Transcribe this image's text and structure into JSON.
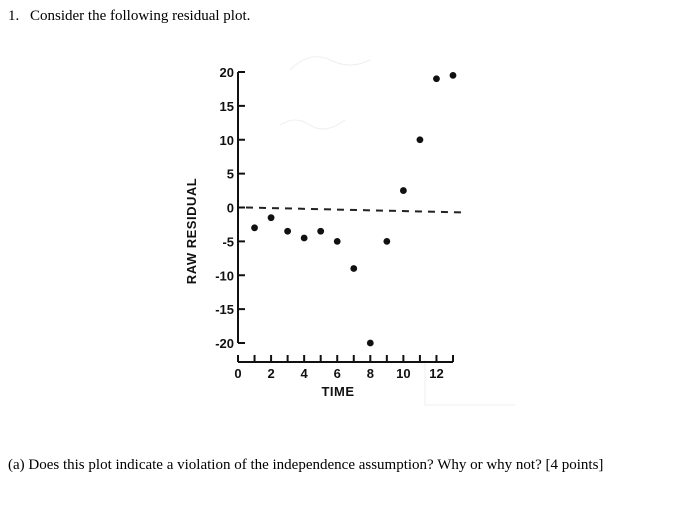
{
  "question": {
    "number": "1.",
    "text": "Consider the following residual plot."
  },
  "subquestion": {
    "text": "(a) Does this plot indicate a violation of the independence assumption? Why or why not? [4 points]"
  },
  "chart_data": {
    "type": "scatter",
    "xlabel": "TIME",
    "ylabel": "RAW RESIDUAL",
    "xlim": [
      0,
      13
    ],
    "ylim": [
      -20,
      20
    ],
    "xticks": [
      0,
      1,
      2,
      3,
      4,
      5,
      6,
      7,
      8,
      9,
      10,
      11,
      12,
      13
    ],
    "xtick_labels": [
      {
        "value": 0,
        "label": "0"
      },
      {
        "value": 2,
        "label": "2"
      },
      {
        "value": 4,
        "label": "4"
      },
      {
        "value": 6,
        "label": "6"
      },
      {
        "value": 8,
        "label": "8"
      },
      {
        "value": 10,
        "label": "10"
      },
      {
        "value": 12,
        "label": "12"
      }
    ],
    "yticks": [
      20,
      15,
      10,
      5,
      0,
      -5,
      -10,
      -15,
      -20
    ],
    "ytick_labels": [
      "20",
      "15",
      "10",
      "5",
      "0",
      "-5",
      "-10",
      "-15",
      "-20"
    ],
    "reference_line": {
      "y": 0,
      "style": "dashed"
    },
    "grid": false,
    "points": [
      {
        "x": 1,
        "y": -3
      },
      {
        "x": 2,
        "y": -1.5
      },
      {
        "x": 3,
        "y": -3.5
      },
      {
        "x": 4,
        "y": -4.5
      },
      {
        "x": 5,
        "y": -3.5
      },
      {
        "x": 6,
        "y": -5
      },
      {
        "x": 7,
        "y": -9
      },
      {
        "x": 8,
        "y": -20
      },
      {
        "x": 9,
        "y": -5
      },
      {
        "x": 10,
        "y": 2.5
      },
      {
        "x": 11,
        "y": 10
      },
      {
        "x": 12,
        "y": 19
      },
      {
        "x": 13,
        "y": 19.5
      }
    ],
    "colors": {
      "marks": "#111111",
      "reference_line": "#222222"
    }
  }
}
